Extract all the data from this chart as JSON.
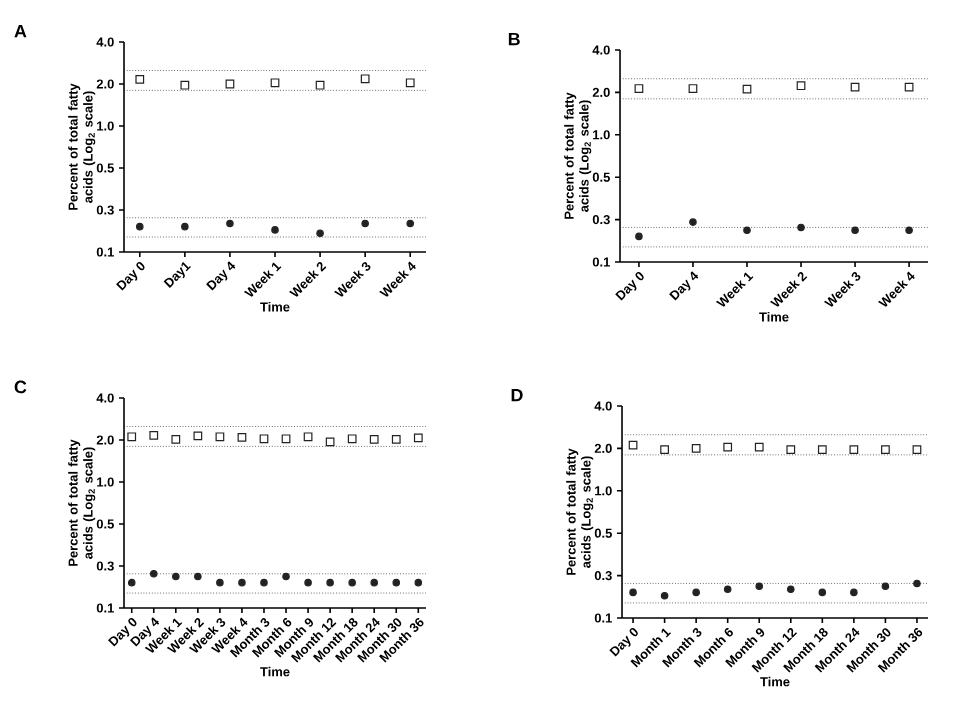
{
  "chart_data": [
    {
      "type": "scatter",
      "title": "A",
      "xlabel": "Time",
      "ylabel": "Percent of total fatty acids (Log$_{2}$ scale)",
      "categories": [
        "Day 0",
        "Day1",
        "Day 4",
        "Week 1",
        "Week 2",
        "Week 3",
        "Week 4"
      ],
      "series": [
        {
          "color": "#222222",
          "marker": "square",
          "values": [
            2.16,
            1.96,
            2.0,
            2.04,
            1.96,
            2.18,
            2.04
          ]
        },
        {
          "color": "#222222",
          "marker": "circle",
          "values": [
            0.19,
            0.19,
            0.2,
            0.18,
            0.17,
            0.2,
            0.2
          ]
        }
      ],
      "ylim": [
        0.125,
        4
      ],
      "log": "y",
      "yticks": [
        {
          "value": 0.125,
          "label": "0.1"
        },
        {
          "value": 0.25,
          "label": "0.3"
        },
        {
          "value": 0.5,
          "label": "0.5"
        },
        {
          "value": 1,
          "label": "1.0"
        },
        {
          "value": 2,
          "label": "2.0"
        },
        {
          "value": 4,
          "label": "4.0"
        }
      ],
      "ref_lines": [
        {
          "axis": "y",
          "value": 2.5,
          "color": "#222222",
          "line_style": "dotted"
        },
        {
          "axis": "y",
          "value": 1.8,
          "color": "#222222",
          "line_style": "dotted"
        },
        {
          "axis": "y",
          "value": 0.22,
          "color": "#222222",
          "line_style": "dotted"
        },
        {
          "axis": "y",
          "value": 0.16,
          "color": "#222222",
          "line_style": "dotted"
        }
      ]
    },
    {
      "type": "scatter",
      "title": "B",
      "xlabel": "Time",
      "ylabel": "Percent of total fatty acids (Log$_{2}$ scale)",
      "categories": [
        "Day 0",
        "Day 4",
        "Week 1",
        "Week 2",
        "Week 3",
        "Week 4"
      ],
      "series": [
        {
          "color": "#222222",
          "marker": "square",
          "values": [
            2.13,
            2.13,
            2.11,
            2.23,
            2.18,
            2.18
          ]
        },
        {
          "color": "#222222",
          "marker": "circle",
          "values": [
            0.19,
            0.24,
            0.21,
            0.22,
            0.21,
            0.21
          ]
        }
      ],
      "ylim": [
        0.125,
        4
      ],
      "log": "y",
      "yticks": [
        {
          "value": 0.125,
          "label": "0.1"
        },
        {
          "value": 0.25,
          "label": "0.3"
        },
        {
          "value": 0.5,
          "label": "0.5"
        },
        {
          "value": 1,
          "label": "1.0"
        },
        {
          "value": 2,
          "label": "2.0"
        },
        {
          "value": 4,
          "label": "4.0"
        }
      ],
      "ref_lines": [
        {
          "axis": "y",
          "value": 2.5,
          "color": "#222222",
          "line_style": "dotted"
        },
        {
          "axis": "y",
          "value": 1.8,
          "color": "#222222",
          "line_style": "dotted"
        },
        {
          "axis": "y",
          "value": 0.22,
          "color": "#222222",
          "line_style": "dotted"
        },
        {
          "axis": "y",
          "value": 0.16,
          "color": "#222222",
          "line_style": "dotted"
        }
      ]
    },
    {
      "type": "scatter",
      "title": "C",
      "xlabel": "Time",
      "ylabel": "Percent of total fatty acids (Log$_{2}$ scale)",
      "categories": [
        "Day 0",
        "Day 4",
        "Week 1",
        "Week 2",
        "Week 3",
        "Week 4",
        "Month 3",
        "Month 6",
        "Month 9",
        "Month 12",
        "Month 18",
        "Month 24",
        "Month 30",
        "Month 36"
      ],
      "series": [
        {
          "color": "#222222",
          "marker": "square",
          "values": [
            2.11,
            2.16,
            2.02,
            2.14,
            2.11,
            2.09,
            2.04,
            2.04,
            2.11,
            1.94,
            2.04,
            2.02,
            2.02,
            2.07
          ]
        },
        {
          "color": "#222222",
          "marker": "circle",
          "values": [
            0.19,
            0.22,
            0.21,
            0.21,
            0.19,
            0.19,
            0.19,
            0.21,
            0.19,
            0.19,
            0.19,
            0.19,
            0.19,
            0.19
          ]
        }
      ],
      "ylim": [
        0.125,
        4
      ],
      "log": "y",
      "yticks": [
        {
          "value": 0.125,
          "label": "0.1"
        },
        {
          "value": 0.25,
          "label": "0.3"
        },
        {
          "value": 0.5,
          "label": "0.5"
        },
        {
          "value": 1,
          "label": "1.0"
        },
        {
          "value": 2,
          "label": "2.0"
        },
        {
          "value": 4,
          "label": "4.0"
        }
      ],
      "ref_lines": [
        {
          "axis": "y",
          "value": 2.5,
          "color": "#222222",
          "line_style": "dotted"
        },
        {
          "axis": "y",
          "value": 1.8,
          "color": "#222222",
          "line_style": "dotted"
        },
        {
          "axis": "y",
          "value": 0.22,
          "color": "#222222",
          "line_style": "dotted"
        },
        {
          "axis": "y",
          "value": 0.16,
          "color": "#222222",
          "line_style": "dotted"
        }
      ]
    },
    {
      "type": "scatter",
      "title": "D",
      "xlabel": "Time",
      "ylabel": "Percent of total fatty acids (Log$_{2}$ scale)",
      "categories": [
        "Day 0",
        "Month 1",
        "Month 3",
        "Month 6",
        "Month 9",
        "Month 12",
        "Month 18",
        "Month 24",
        "Month 30",
        "Month 36"
      ],
      "series": [
        {
          "color": "#222222",
          "marker": "square",
          "values": [
            2.11,
            1.96,
            2.0,
            2.04,
            2.04,
            1.96,
            1.96,
            1.96,
            1.96,
            1.96
          ]
        },
        {
          "color": "#222222",
          "marker": "circle",
          "values": [
            0.19,
            0.18,
            0.19,
            0.2,
            0.21,
            0.2,
            0.19,
            0.19,
            0.21,
            0.22
          ]
        }
      ],
      "ylim": [
        0.125,
        4
      ],
      "log": "y",
      "yticks": [
        {
          "value": 0.125,
          "label": "0.1"
        },
        {
          "value": 0.25,
          "label": "0.3"
        },
        {
          "value": 0.5,
          "label": "0.5"
        },
        {
          "value": 1,
          "label": "1.0"
        },
        {
          "value": 2,
          "label": "2.0"
        },
        {
          "value": 4,
          "label": "4.0"
        }
      ],
      "ref_lines": [
        {
          "axis": "y",
          "value": 2.5,
          "color": "#222222",
          "line_style": "dotted"
        },
        {
          "axis": "y",
          "value": 1.8,
          "color": "#222222",
          "line_style": "dotted"
        },
        {
          "axis": "y",
          "value": 0.22,
          "color": "#222222",
          "line_style": "dotted"
        },
        {
          "axis": "y",
          "value": 0.16,
          "color": "#222222",
          "line_style": "dotted"
        }
      ]
    }
  ]
}
